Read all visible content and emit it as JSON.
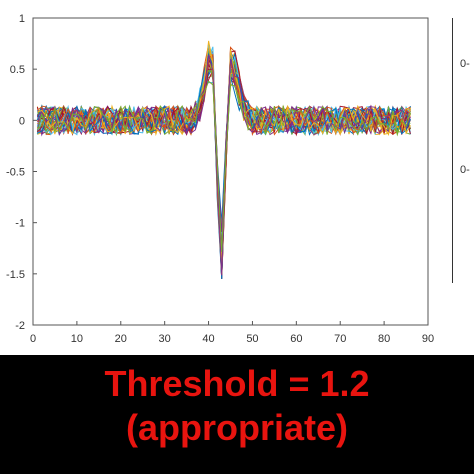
{
  "chart_data": {
    "type": "line",
    "title": "",
    "xlabel": "",
    "ylabel": "",
    "xlim": [
      0,
      90
    ],
    "ylim": [
      -2,
      1
    ],
    "xticks": [
      "0",
      "10",
      "20",
      "30",
      "40",
      "50",
      "60",
      "70",
      "80",
      "90"
    ],
    "yticks": [
      "1",
      "0.5",
      "0",
      "-0.5",
      "-1",
      "-1.5",
      "-2"
    ],
    "grid": false,
    "legend": "none",
    "samples": 86,
    "x": [
      1,
      2,
      3,
      4,
      5,
      6,
      7,
      8,
      9,
      10,
      11,
      12,
      13,
      14,
      15,
      16,
      17,
      18,
      19,
      20,
      21,
      22,
      23,
      24,
      25,
      26,
      27,
      28,
      29,
      30,
      31,
      32,
      33,
      34,
      35,
      36,
      37,
      38,
      39,
      40,
      41,
      42,
      43,
      44,
      45,
      46,
      47,
      48,
      49,
      50,
      51,
      52,
      53,
      54,
      55,
      56,
      57,
      58,
      59,
      60,
      61,
      62,
      63,
      64,
      65,
      66,
      67,
      68,
      69,
      70,
      71,
      72,
      73,
      74,
      75,
      76,
      77,
      78,
      79,
      80,
      81,
      82,
      83,
      84,
      85,
      86
    ],
    "mean_waveform": [
      0,
      0,
      0,
      0,
      0,
      0,
      0,
      0,
      0,
      0,
      0,
      0,
      0,
      0,
      0,
      0,
      0,
      0,
      0,
      0,
      0,
      0,
      0,
      0,
      0,
      0,
      0,
      0,
      0,
      0,
      0,
      0,
      0,
      0,
      0,
      0,
      0.05,
      0.15,
      0.35,
      0.6,
      0.55,
      -0.6,
      -1.4,
      -0.3,
      0.55,
      0.5,
      0.3,
      0.15,
      0.05,
      0,
      0,
      0,
      0,
      0,
      0,
      0,
      0,
      0,
      0,
      0,
      0,
      0,
      0,
      0,
      0,
      0,
      0,
      0,
      0,
      0,
      0,
      0,
      0,
      0,
      0,
      0,
      0,
      0,
      0,
      0,
      0,
      0,
      0,
      0,
      0,
      0
    ],
    "noise_amplitude": 0.14,
    "trace_count": 40,
    "peak_max": 0.83,
    "trough_min": -1.55,
    "series_colors": [
      "#0072bd",
      "#d95319",
      "#edb120",
      "#7e2f8e",
      "#77ac30",
      "#4dbeee",
      "#a2142f"
    ]
  },
  "right_panel": {
    "tick_top": "0-",
    "tick_mid": "0-"
  },
  "caption": {
    "line1": "Threshold = 1.2",
    "line2": "(appropriate)",
    "color": "#e8140f"
  }
}
